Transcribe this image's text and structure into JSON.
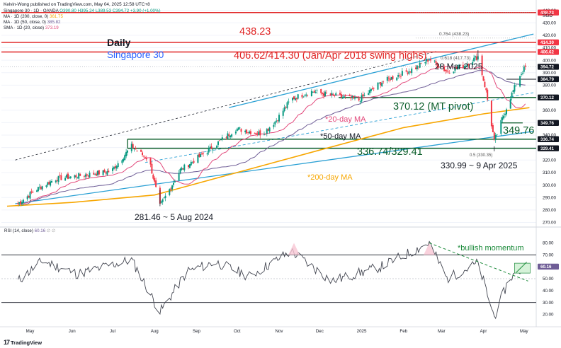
{
  "header": {
    "publisher_line": "Kelvin-Wong published on TradingView.com, May 04, 2025 12:58 UTC+8",
    "symbol_line": {
      "prefix": "Singapore 30 · 1D · OANDA",
      "ohlc": "O390.80 H395.24 L389.53 C394.72 +3.90 (+1.00%)"
    },
    "ma200": {
      "label": "MA · 1D (200, close, 0)",
      "value": "361.75"
    },
    "ma50": {
      "label": "MA · 1D (50, close, 0)",
      "value": "385.82"
    },
    "sma20": {
      "label": "SMA · 1D (20, close)",
      "value": "373.19"
    },
    "currency": "SGD"
  },
  "annotations": {
    "daily": "Daily",
    "instrument": "Singapore 30",
    "level_438": "438.23",
    "swing_highs": "406.62/414.30 (Jan/Apr 2018 swing highs)",
    "fib_0764": "0.764 (438.23)",
    "fib_0618": "0.618 (417.73)",
    "date_28mar": "28 Mar 2025",
    "mt_pivot": "370.12 (MT pivot)",
    "level_349": "349.76",
    "support_336": "336.74/329.41",
    "fib_05": "0.5 (330.35)",
    "low_330": "330.99 ~ 9 Apr 2025",
    "low_281": "281.46 ~ 5 Aug 2024",
    "ma20_label": "*20-day MA",
    "ma50_label": "*50-day MA",
    "ma200_label": "*200-day MA",
    "bullish": "*bullish momentum"
  },
  "rsi_legend": {
    "label": "RSI (14, close)",
    "value": "60.16",
    "extra": "∅ ∅"
  },
  "footer": {
    "logo": "TradingView"
  },
  "colors": {
    "up": "#089981",
    "down": "#f23645",
    "horizontal_red": "#e02424",
    "support_green": "#0b5e2a",
    "ma200": "#f7a600",
    "ma50": "#6f5d96",
    "sma20": "#e2477a",
    "channel": "#2aa0d4",
    "rsi": "#434651",
    "bullish_green": "#1b8a3a",
    "instrument_blue": "#2962ff"
  },
  "chart_data": {
    "type": "candlestick",
    "title": "Singapore 30 · 1D · OANDA",
    "y_axis": {
      "label": "SGD",
      "ylim": [
        268,
        446
      ],
      "ticks": [
        270,
        280,
        290,
        300,
        310,
        320,
        330,
        340,
        350,
        360,
        370,
        380,
        390,
        400,
        410,
        420,
        430,
        440
      ],
      "price_labels": [
        {
          "value": 438.23,
          "text": "438.23",
          "color": "#f23645"
        },
        {
          "value": 414.3,
          "text": "414.30",
          "color": "#f23645"
        },
        {
          "value": 406.62,
          "text": "406.62",
          "color": "#f23645"
        },
        {
          "value": 394.72,
          "text": "394.72",
          "color": "#131722"
        },
        {
          "value": 384.79,
          "text": "384.79",
          "color": "#131722"
        },
        {
          "value": 370.12,
          "text": "370.12",
          "color": "#131722"
        },
        {
          "value": 349.76,
          "text": "349.76",
          "color": "#131722"
        },
        {
          "value": 336.74,
          "text": "336.74",
          "color": "#131722"
        },
        {
          "value": 329.41,
          "text": "329.41",
          "color": "#131722"
        }
      ]
    },
    "x_axis": {
      "months": [
        "May",
        "Jun",
        "Jul",
        "Aug",
        "Sep",
        "Oct",
        "Nov",
        "Dec",
        "2025",
        "Feb",
        "Mar",
        "Apr",
        "May"
      ]
    },
    "horizontal_levels": [
      {
        "value": 438.23,
        "color": "#e02424"
      },
      {
        "value": 414.3,
        "color": "#e02424"
      },
      {
        "value": 406.62,
        "color": "#e02424"
      },
      {
        "value": 370.12,
        "color": "#0b5e2a"
      },
      {
        "value": 336.74,
        "color": "#0b5e2a"
      },
      {
        "value": 329.41,
        "color": "#0b5e2a"
      }
    ],
    "price_path": [
      {
        "date": "2024-04-22",
        "close": 285
      },
      {
        "date": "2024-05-05",
        "close": 296
      },
      {
        "date": "2024-05-20",
        "close": 305
      },
      {
        "date": "2024-06-10",
        "close": 308
      },
      {
        "date": "2024-06-30",
        "close": 311
      },
      {
        "date": "2024-07-15",
        "close": 331
      },
      {
        "date": "2024-07-28",
        "close": 320
      },
      {
        "date": "2024-08-05",
        "close": 283
      },
      {
        "date": "2024-08-20",
        "close": 312
      },
      {
        "date": "2024-09-10",
        "close": 328
      },
      {
        "date": "2024-09-30",
        "close": 345
      },
      {
        "date": "2024-10-20",
        "close": 341
      },
      {
        "date": "2024-10-30",
        "close": 352
      },
      {
        "date": "2024-11-10",
        "close": 369
      },
      {
        "date": "2024-11-25",
        "close": 375
      },
      {
        "date": "2024-12-10",
        "close": 372
      },
      {
        "date": "2024-12-30",
        "close": 368
      },
      {
        "date": "2025-01-15",
        "close": 382
      },
      {
        "date": "2025-01-28",
        "close": 388
      },
      {
        "date": "2025-02-10",
        "close": 394
      },
      {
        "date": "2025-02-20",
        "close": 401
      },
      {
        "date": "2025-03-05",
        "close": 391
      },
      {
        "date": "2025-03-18",
        "close": 396
      },
      {
        "date": "2025-03-28",
        "close": 403
      },
      {
        "date": "2025-04-03",
        "close": 375
      },
      {
        "date": "2025-04-09",
        "close": 335
      },
      {
        "date": "2025-04-20",
        "close": 368
      },
      {
        "date": "2025-04-28",
        "close": 388
      },
      {
        "date": "2025-05-02",
        "close": 394.72
      }
    ],
    "rsi": {
      "ylim": [
        12,
        88
      ],
      "ticks": [
        20,
        30,
        40,
        50,
        60,
        70,
        80
      ],
      "levels": [
        70,
        50,
        30
      ],
      "path": [
        {
          "date": "2024-04-22",
          "value": 48
        },
        {
          "date": "2024-05-10",
          "value": 65
        },
        {
          "date": "2024-06-05",
          "value": 54
        },
        {
          "date": "2024-07-15",
          "value": 66
        },
        {
          "date": "2024-08-05",
          "value": 22
        },
        {
          "date": "2024-08-25",
          "value": 56
        },
        {
          "date": "2024-09-15",
          "value": 64
        },
        {
          "date": "2024-10-10",
          "value": 52
        },
        {
          "date": "2024-11-10",
          "value": 73
        },
        {
          "date": "2024-12-10",
          "value": 48
        },
        {
          "date": "2025-01-15",
          "value": 60
        },
        {
          "date": "2025-02-20",
          "value": 80
        },
        {
          "date": "2025-03-05",
          "value": 50
        },
        {
          "date": "2025-03-28",
          "value": 63
        },
        {
          "date": "2025-04-09",
          "value": 18
        },
        {
          "date": "2025-04-20",
          "value": 50
        },
        {
          "date": "2025-05-02",
          "value": 60.16
        }
      ]
    }
  }
}
